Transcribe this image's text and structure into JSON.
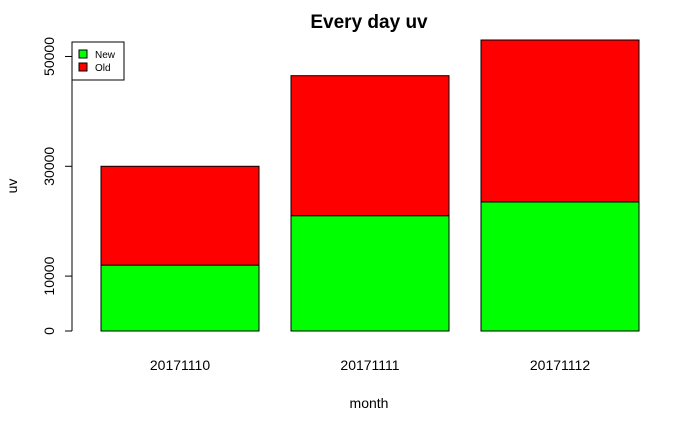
{
  "chart_data": {
    "type": "bar",
    "stacked": true,
    "title": "Every day uv",
    "xlabel": "month",
    "ylabel": "uv",
    "categories": [
      "20171110",
      "20171111",
      "20171112"
    ],
    "series": [
      {
        "name": "New",
        "color": "#00ff00",
        "values": [
          12000,
          21000,
          23500
        ]
      },
      {
        "name": "Old",
        "color": "#ff0000",
        "values": [
          18000,
          25500,
          29500
        ]
      }
    ],
    "yticks": [
      0,
      10000,
      30000,
      50000
    ],
    "ylim": [
      0,
      53000
    ],
    "grid": false,
    "legend_position": "top-left"
  }
}
